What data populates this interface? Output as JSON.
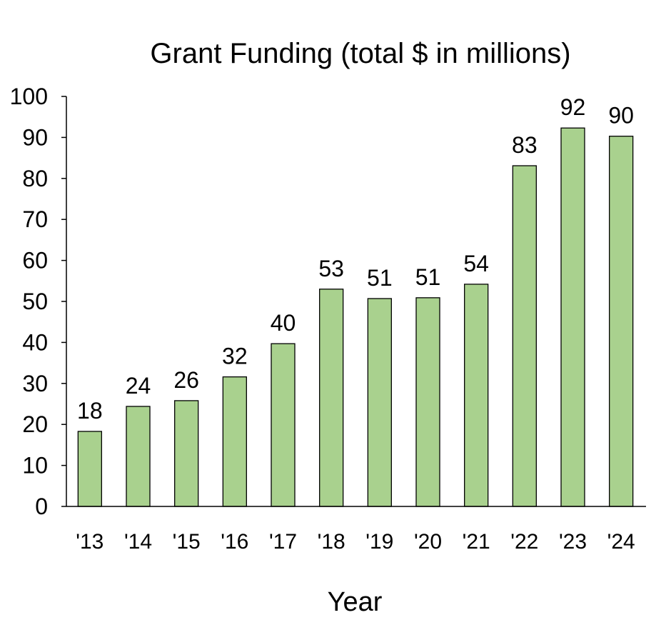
{
  "chart_data": {
    "type": "bar",
    "title": "Grant Funding (total $ in millions)",
    "xlabel": "Year",
    "ylabel": "",
    "categories": [
      "'13",
      "'14",
      "'15",
      "'16",
      "'17",
      "'18",
      "'19",
      "'20",
      "'21",
      "'22",
      "'23",
      "'24"
    ],
    "values": [
      18.3,
      24.4,
      25.8,
      31.6,
      39.7,
      53.0,
      50.7,
      50.9,
      54.2,
      83.1,
      92.3,
      90.3
    ],
    "data_labels": [
      "18",
      "24",
      "26",
      "32",
      "40",
      "53",
      "51",
      "51",
      "54",
      "83",
      "92",
      "90"
    ],
    "ylim": [
      0,
      100
    ],
    "yticks": [
      0,
      10,
      20,
      30,
      40,
      50,
      60,
      70,
      80,
      90,
      100
    ],
    "grid": false,
    "legend": "none",
    "colors": {
      "bar": "#a9d18e",
      "bar_border": "#000000",
      "text": "#000000"
    }
  }
}
